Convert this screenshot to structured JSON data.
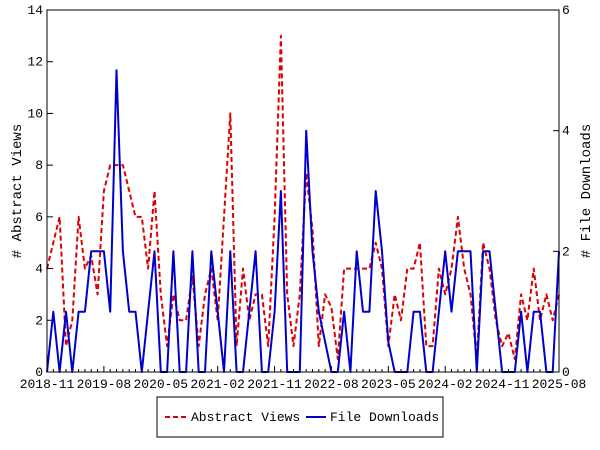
{
  "chart_data": {
    "type": "line",
    "title": "",
    "x_start": "2018-11",
    "x_end": "2025-08",
    "x_tick_labels": [
      "2018-11",
      "2019-08",
      "2020-05",
      "2021-02",
      "2021-11",
      "2022-08",
      "2023-05",
      "2024-02",
      "2024-11",
      "2025-08"
    ],
    "ylabel": "# Abstract Views",
    "y2label": "# File Downloads",
    "ylim": [
      0,
      14
    ],
    "y2lim": [
      0,
      6
    ],
    "y_ticks": [
      "0",
      "2",
      "4",
      "6",
      "8",
      "10",
      "12",
      "14"
    ],
    "y2_ticks": [
      "0",
      "2",
      "4",
      "6"
    ],
    "legend_position": "bottom-center",
    "series": [
      {
        "name": "Abstract Views",
        "axis": "left",
        "color": "#dd0000",
        "style": "dashed",
        "values": [
          4,
          5,
          6,
          1,
          2,
          6,
          4,
          4.5,
          3,
          7,
          8,
          8,
          8,
          7,
          6,
          6,
          4,
          7,
          3,
          1,
          3,
          2,
          2,
          3.7,
          1,
          3,
          4,
          2,
          6,
          10,
          1,
          4,
          2,
          3,
          3,
          1,
          6,
          13,
          3,
          1,
          3,
          7.7,
          5.5,
          1,
          3,
          2.5,
          0.5,
          4,
          4,
          4,
          4,
          4,
          5,
          4,
          1,
          3,
          2,
          4,
          4,
          5,
          1,
          1,
          4,
          3,
          4,
          6,
          4,
          3,
          0.5,
          5,
          4,
          2,
          1,
          1.5,
          0.5,
          3,
          2,
          4,
          2,
          3,
          2,
          3
        ]
      },
      {
        "name": "File Downloads",
        "axis": "right",
        "color": "#0000cc",
        "style": "solid",
        "values": [
          0,
          1,
          0,
          1,
          0,
          1,
          1,
          2,
          2,
          2,
          1,
          5,
          2,
          1,
          1,
          0,
          1,
          2,
          0,
          0,
          2,
          0,
          0,
          2,
          0,
          0,
          2,
          1,
          0,
          2,
          0,
          0,
          1,
          2,
          0,
          0,
          1,
          3,
          0,
          0,
          0,
          4,
          2,
          1,
          0.5,
          0,
          0,
          1,
          0,
          2,
          1,
          1,
          3,
          2,
          0.5,
          0,
          0,
          0,
          1,
          1,
          0,
          0,
          1,
          2,
          1,
          2,
          2,
          2,
          0,
          2,
          2,
          1,
          0,
          0,
          0,
          1,
          0,
          1,
          1,
          0,
          0,
          2
        ]
      }
    ]
  }
}
